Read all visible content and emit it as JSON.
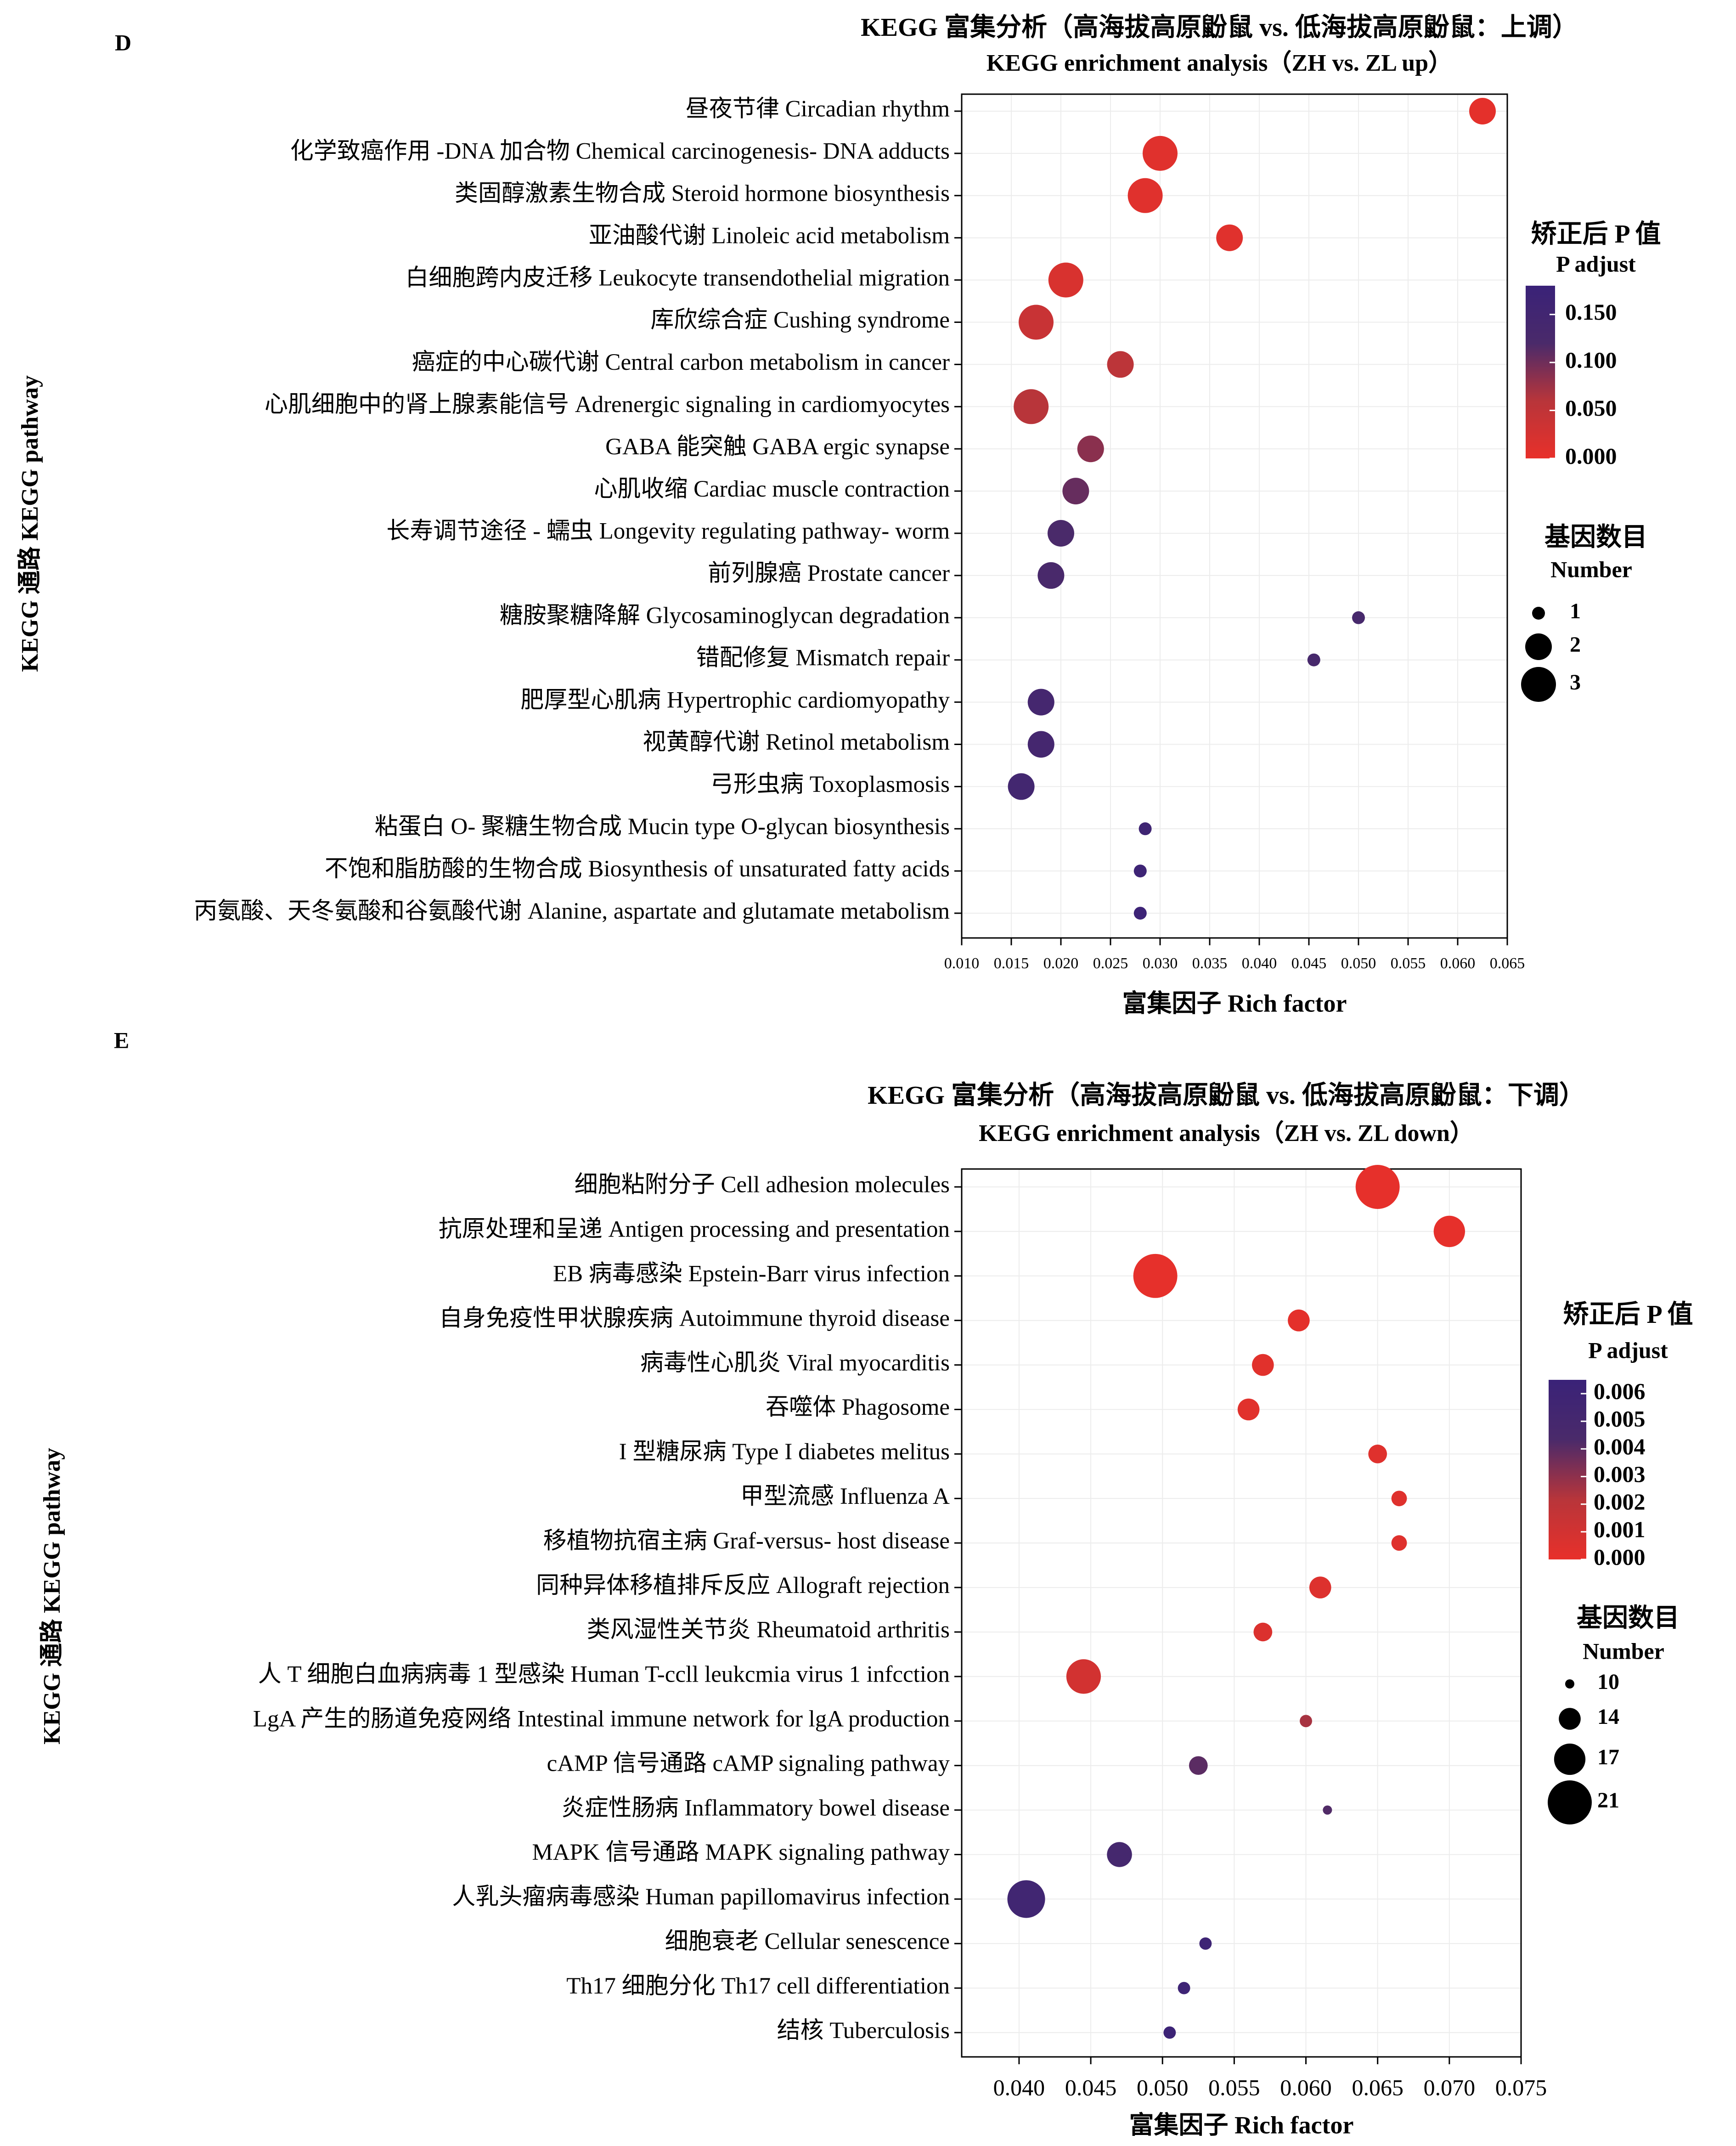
{
  "chart_data": [
    {
      "panel": "D",
      "type": "scatter",
      "title": "KEGG 富集分析（高海拔高原鼢鼠 vs. 低海拔高原鼢鼠：上调）",
      "subtitle": "KEGG enrichment analysis（ZH vs.  ZL up）",
      "xlabel": "富集因子 Rich factor",
      "ylabel": "KEGG 通路 KEGG pathway",
      "xlim": [
        0.01,
        0.065
      ],
      "xticks": [
        "0.010",
        "0.015",
        "0.020",
        "0.025",
        "0.030",
        "0.035",
        "0.040",
        "0.045",
        "0.050",
        "0.055",
        "0.060",
        "0.065"
      ],
      "grid": true,
      "color_legend": {
        "title": "矫正后 P 值",
        "subtitle": "P adjust",
        "ticks": [
          "0.150",
          "0.100",
          "0.050",
          "0.000"
        ],
        "range": [
          0,
          0.18
        ],
        "colors": [
          "#e8302a",
          "#b8353a",
          "#4a2a6a",
          "#3a2278"
        ]
      },
      "size_legend": {
        "title": "基因数目",
        "subtitle": "Number",
        "entries": [
          "1",
          "2",
          "3"
        ]
      },
      "points": [
        {
          "label": "昼夜节律 Circadian rhythm",
          "x": 0.0625,
          "count": 2,
          "p": 0.005
        },
        {
          "label": "化学致癌作用 -DNA 加合物 Chemical carcinogenesis- DNA adducts",
          "x": 0.03,
          "count": 3,
          "p": 0.01
        },
        {
          "label": "类固醇激素生物合成 Steroid hormone biosynthesis",
          "x": 0.0285,
          "count": 3,
          "p": 0.01
        },
        {
          "label": "亚油酸代谢 Linoleic acid metabolism",
          "x": 0.037,
          "count": 2,
          "p": 0.01
        },
        {
          "label": "白细胞跨内皮迁移 Leukocyte transendothelial migration",
          "x": 0.0205,
          "count": 3,
          "p": 0.02
        },
        {
          "label": "库欣综合症 Cushing syndrome",
          "x": 0.0175,
          "count": 3,
          "p": 0.04
        },
        {
          "label": "癌症的中心碳代谢 Central carbon metabolism in cancer",
          "x": 0.026,
          "count": 2,
          "p": 0.055
        },
        {
          "label": "心肌细胞中的肾上腺素能信号 Adrenergic signaling in cardiomyocytes",
          "x": 0.017,
          "count": 3,
          "p": 0.06
        },
        {
          "label": "GABA 能突触 GABA ergic synapse",
          "x": 0.023,
          "count": 2,
          "p": 0.085
        },
        {
          "label": "心肌收缩 Cardiac muscle contraction",
          "x": 0.0215,
          "count": 2,
          "p": 0.105
        },
        {
          "label": "长寿调节途径 - 蠕虫 Longevity regulating pathway- worm",
          "x": 0.02,
          "count": 2,
          "p": 0.12
        },
        {
          "label": "前列腺癌 Prostate cancer",
          "x": 0.019,
          "count": 2,
          "p": 0.125
        },
        {
          "label": "糖胺聚糖降解 Glycosaminoglycan degradation",
          "x": 0.05,
          "count": 1,
          "p": 0.13
        },
        {
          "label": "错配修复 Mismatch repair",
          "x": 0.0455,
          "count": 1,
          "p": 0.13
        },
        {
          "label": "肥厚型心肌病 Hypertrophic cardiomyopathy",
          "x": 0.018,
          "count": 2,
          "p": 0.14
        },
        {
          "label": "视黄醇代谢 Retinol metabolism",
          "x": 0.018,
          "count": 2,
          "p": 0.14
        },
        {
          "label": "弓形虫病 Toxoplasmosis",
          "x": 0.016,
          "count": 2,
          "p": 0.145
        },
        {
          "label": "粘蛋白 O- 聚糖生物合成 Mucin type O-glycan biosynthesis",
          "x": 0.0285,
          "count": 1,
          "p": 0.16
        },
        {
          "label": "不饱和脂肪酸的生物合成 Biosynthesis of unsaturated fatty acids",
          "x": 0.028,
          "count": 1,
          "p": 0.165
        },
        {
          "label": "丙氨酸、天冬氨酸和谷氨酸代谢 Alanine, aspartate and glutamate metabolism",
          "x": 0.028,
          "count": 1,
          "p": 0.17
        }
      ]
    },
    {
      "panel": "E",
      "type": "scatter",
      "title": "KEGG 富集分析（高海拔高原鼢鼠 vs. 低海拔高原鼢鼠：下调）",
      "subtitle": "KEGG enrichment analysis（ZH vs.  ZL down）",
      "xlabel": "富集因子 Rich factor",
      "ylabel": "KEGG 通路 KEGG pathway",
      "xlim": [
        0.036,
        0.075
      ],
      "xticks": [
        "0.040",
        "0.045",
        "0.050",
        "0.055",
        "0.060",
        "0.065",
        "0.070",
        "0.075"
      ],
      "grid": true,
      "color_legend": {
        "title": "矫正后 P 值",
        "subtitle": "P adjust",
        "ticks": [
          "0.006",
          "0.005",
          "0.004",
          "0.003",
          "0.002",
          "0.001",
          "0.000"
        ],
        "range": [
          0,
          0.0065
        ],
        "colors": [
          "#e8302a",
          "#b8353a",
          "#4a2a6a",
          "#3a2278"
        ]
      },
      "size_legend": {
        "title": "基因数目",
        "subtitle": "Number",
        "entries": [
          "10",
          "14",
          "17",
          "21"
        ]
      },
      "points": [
        {
          "label": "细胞粘附分子 Cell adhesion molecules",
          "x": 0.065,
          "count": 21,
          "p": 0.0001
        },
        {
          "label": "抗原处理和呈递 Antigen processing and presentation",
          "x": 0.07,
          "count": 17,
          "p": 0.0001
        },
        {
          "label": "EB 病毒感染 Epstein-Barr virus infection",
          "x": 0.0495,
          "count": 21,
          "p": 0.0001
        },
        {
          "label": "自身免疫性甲状腺疾病 Autoimmune thyroid disease",
          "x": 0.0595,
          "count": 14,
          "p": 0.0002
        },
        {
          "label": "病毒性心肌炎 Viral myocarditis",
          "x": 0.057,
          "count": 14,
          "p": 0.0003
        },
        {
          "label": "吞噬体 Phagosome",
          "x": 0.056,
          "count": 14,
          "p": 0.0003
        },
        {
          "label": "I 型糖尿病 Type I diabetes melitus",
          "x": 0.065,
          "count": 13,
          "p": 0.0004
        },
        {
          "label": "甲型流感 Influenza A",
          "x": 0.0665,
          "count": 12,
          "p": 0.0004
        },
        {
          "label": "移植物抗宿主病 Graf-versus- host disease",
          "x": 0.0665,
          "count": 12,
          "p": 0.0004
        },
        {
          "label": "同种异体移植排斥反应 Allograft rejection",
          "x": 0.061,
          "count": 14,
          "p": 0.0005
        },
        {
          "label": "类风湿性关节炎 Rheumatoid arthritis",
          "x": 0.057,
          "count": 13,
          "p": 0.0006
        },
        {
          "label": "人 T 细胞白血病病毒 1 型感染 Human T-ccll leukcmia virus 1 infcction",
          "x": 0.0445,
          "count": 18,
          "p": 0.001
        },
        {
          "label": "LgA 产生的肠道免疫网络 Intestinal immune network for lgA production",
          "x": 0.06,
          "count": 11,
          "p": 0.0025
        },
        {
          "label": "cAMP 信号通路 cAMP signaling pathway",
          "x": 0.0525,
          "count": 13,
          "p": 0.004
        },
        {
          "label": "炎症性肠病 Inflammatory bowel disease",
          "x": 0.0615,
          "count": 10,
          "p": 0.0042
        },
        {
          "label": "MAPK 信号通路 MAPK signaling pathway",
          "x": 0.047,
          "count": 15,
          "p": 0.005
        },
        {
          "label": "人乳头瘤病毒感染 Human papillomavirus infection",
          "x": 0.0405,
          "count": 19,
          "p": 0.0055
        },
        {
          "label": "细胞衰老 Cellular senescence",
          "x": 0.053,
          "count": 11,
          "p": 0.006
        },
        {
          "label": "Th17 细胞分化 Th17 cell differentiation",
          "x": 0.0515,
          "count": 11,
          "p": 0.006
        },
        {
          "label": "结核 Tuberculosis",
          "x": 0.0505,
          "count": 11,
          "p": 0.0062
        }
      ]
    }
  ]
}
